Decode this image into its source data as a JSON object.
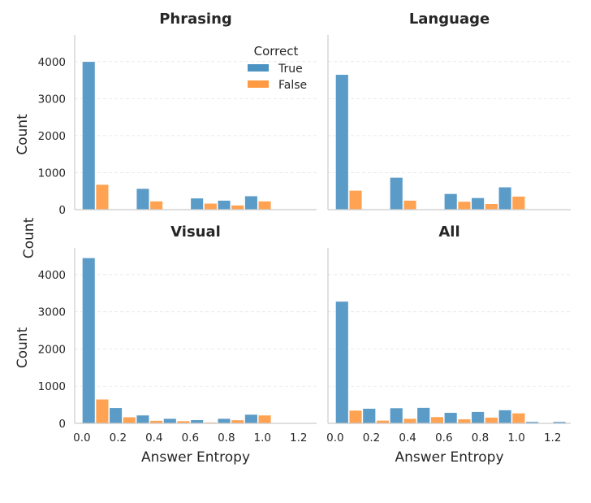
{
  "chart_data": {
    "type": "bar",
    "ylabel": "Count",
    "shared_ylabel": "Count",
    "xlabel": "Answer Entropy",
    "xlim": [
      -0.04,
      1.3
    ],
    "ylim": [
      0,
      4720
    ],
    "xticks": [
      "0.0",
      "0.2",
      "0.4",
      "0.6",
      "0.8",
      "1.0",
      "1.2"
    ],
    "yticks": [
      "0",
      "1000",
      "2000",
      "3000",
      "4000"
    ],
    "grid": "horizontal dashed",
    "bin_starts": [
      0.0,
      0.15,
      0.3,
      0.45,
      0.6,
      0.75,
      0.9,
      1.05,
      1.2
    ],
    "legend": {
      "title": "Correct",
      "placement": "top-right of first panel",
      "entries": [
        {
          "label": "True",
          "color": "#4c92c3"
        },
        {
          "label": "False",
          "color": "#ff9a42"
        }
      ]
    },
    "panels": [
      {
        "title": "Phrasing",
        "series": [
          {
            "name": "True",
            "values": [
              4000,
              0,
              570,
              0,
              310,
              250,
              370,
              0,
              0
            ]
          },
          {
            "name": "False",
            "values": [
              680,
              0,
              230,
              0,
              170,
              120,
              230,
              0,
              0
            ]
          }
        ]
      },
      {
        "title": "Language",
        "series": [
          {
            "name": "True",
            "values": [
              3650,
              0,
              870,
              0,
              430,
              320,
              610,
              0,
              0
            ]
          },
          {
            "name": "False",
            "values": [
              520,
              0,
              250,
              0,
              220,
              160,
              360,
              0,
              0
            ]
          }
        ]
      },
      {
        "title": "Visual",
        "series": [
          {
            "name": "True",
            "values": [
              4450,
              420,
              220,
              130,
              95,
              130,
              240,
              0,
              0
            ]
          },
          {
            "name": "False",
            "values": [
              650,
              170,
              75,
              65,
              30,
              90,
              220,
              0,
              0
            ]
          }
        ]
      },
      {
        "title": "All",
        "series": [
          {
            "name": "True",
            "values": [
              3280,
              400,
              415,
              425,
              290,
              315,
              360,
              45,
              45
            ]
          },
          {
            "name": "False",
            "values": [
              350,
              80,
              130,
              175,
              115,
              160,
              275,
              0,
              0
            ]
          }
        ]
      }
    ]
  }
}
